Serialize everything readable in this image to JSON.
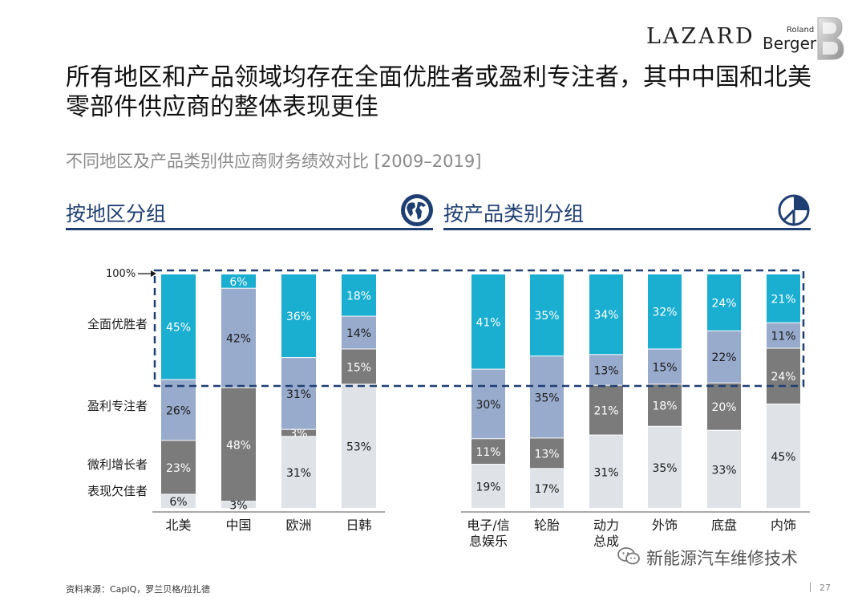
{
  "logos": {
    "lazard": "LAZARD",
    "rb_small": "Roland",
    "rb": "Berger"
  },
  "title": "所有地区和产品领域均存在全面优胜者或盈利专注者，其中中国和北美零部件供应商的整体表现更佳",
  "subtitle": "不同地区及产品类别供应商财务绩效对比 [2009–2019]",
  "sections": {
    "region": "按地区分组",
    "product": "按产品类别分组"
  },
  "icons": {
    "region": "globe-icon",
    "product": "pie-chart-icon"
  },
  "colors": {
    "all_round": "#1aaed1",
    "profit": "#98abcc",
    "micro": "#7b7b7b",
    "poor": "#dfe3e7",
    "navy": "#1f3f73"
  },
  "chart_data": [
    {
      "type": "bar",
      "stacked": true,
      "categories": [
        "北美",
        "中国",
        "欧洲",
        "日韩"
      ],
      "series": [
        {
          "name": "全面优胜者",
          "values": [
            45,
            6,
            36,
            18
          ]
        },
        {
          "name": "盈利专注者",
          "values": [
            26,
            42,
            31,
            14
          ]
        },
        {
          "name": "微利增长者",
          "values": [
            23,
            48,
            3,
            15
          ]
        },
        {
          "name": "表现欠佳者",
          "values": [
            6,
            3,
            31,
            53
          ]
        }
      ],
      "ylim": [
        0,
        100
      ],
      "top_label": "100%"
    },
    {
      "type": "bar",
      "stacked": true,
      "categories": [
        "电子/信息娱乐",
        "轮胎",
        "动力总成",
        "外饰",
        "底盘",
        "内饰"
      ],
      "series": [
        {
          "name": "全面优胜者",
          "values": [
            41,
            35,
            34,
            32,
            24,
            21
          ]
        },
        {
          "name": "盈利专注者",
          "values": [
            30,
            35,
            13,
            15,
            22,
            11
          ]
        },
        {
          "name": "微利增长者",
          "values": [
            11,
            13,
            21,
            18,
            20,
            24
          ]
        },
        {
          "name": "表现欠佳者",
          "values": [
            19,
            17,
            31,
            35,
            33,
            45
          ]
        }
      ],
      "ylim": [
        0,
        100
      ]
    }
  ],
  "category_labels": {
    "region": [
      "北美",
      "中国",
      "欧洲",
      "日韩"
    ],
    "product": [
      [
        "电子/信",
        "息娱乐"
      ],
      [
        "轮胎"
      ],
      [
        "动力",
        "总成"
      ],
      [
        "外饰"
      ],
      [
        "底盘"
      ],
      [
        "内饰"
      ]
    ]
  },
  "watermark": "新能源汽车维修技术",
  "source": "资料来源：CapIQ，罗兰贝格/拉扎德",
  "page": "27"
}
